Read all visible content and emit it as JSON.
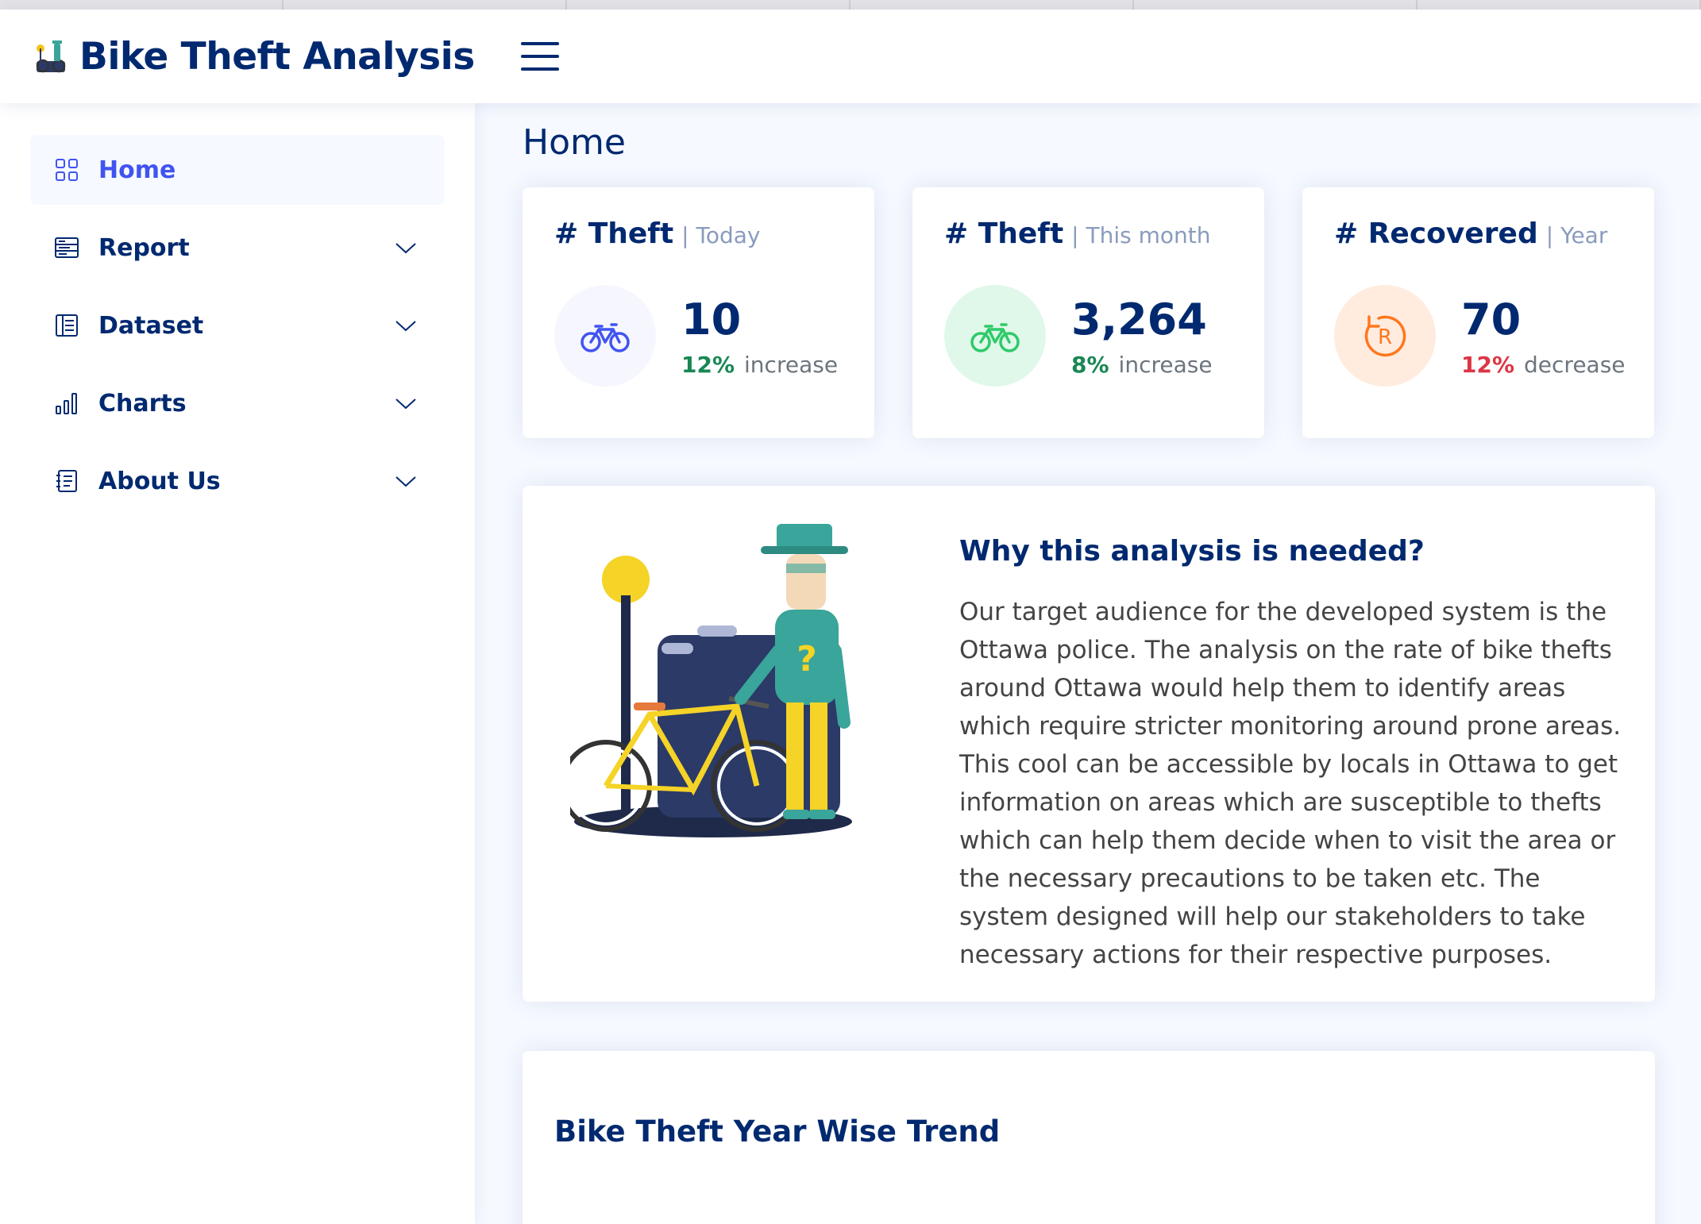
{
  "app": {
    "title": "Bike Theft Analysis"
  },
  "sidebar": {
    "items": [
      {
        "label": "Home",
        "icon": "grid-icon",
        "active": true
      },
      {
        "label": "Report",
        "icon": "layout-icon"
      },
      {
        "label": "Dataset",
        "icon": "table-icon"
      },
      {
        "label": "Charts",
        "icon": "bar-chart-icon"
      },
      {
        "label": "About Us",
        "icon": "journal-icon"
      }
    ]
  },
  "page": {
    "title": "Home"
  },
  "cards": [
    {
      "title": "# Theft",
      "filter": "| Today",
      "value": "10",
      "pct": "12%",
      "trend": "increase",
      "icon": "bicycle-icon",
      "accent": "#4154f1",
      "bg": "#f6f6fe",
      "pct_color": "#198754"
    },
    {
      "title": "# Theft",
      "filter": "| This month",
      "value": "3,264",
      "pct": "8%",
      "trend": "increase",
      "icon": "bicycle-icon",
      "accent": "#2eca6a",
      "bg": "#e0f8e9",
      "pct_color": "#198754"
    },
    {
      "title": "# Recovered",
      "filter": "| Year",
      "value": "70",
      "pct": "12%",
      "trend": "decrease",
      "icon": "recovered-icon",
      "accent": "#ff771d",
      "bg": "#ffecdf",
      "pct_color": "#dc3545"
    }
  ],
  "why": {
    "title": "Why this analysis is needed?",
    "text": "Our target audience for the developed system is the Ottawa police. The analysis on the rate of bike thefts around Ottawa would help them to identify areas which require stricter monitoring around prone areas. This cool can be accessible by locals in Ottawa to get information on areas which are susceptible to thefts which can help them decide when to visit the area or the necessary precautions to be taken etc. The system designed will help our stakeholders to take necessary actions for their respective purposes."
  },
  "trend": {
    "title": "Bike Theft Year Wise Trend"
  }
}
